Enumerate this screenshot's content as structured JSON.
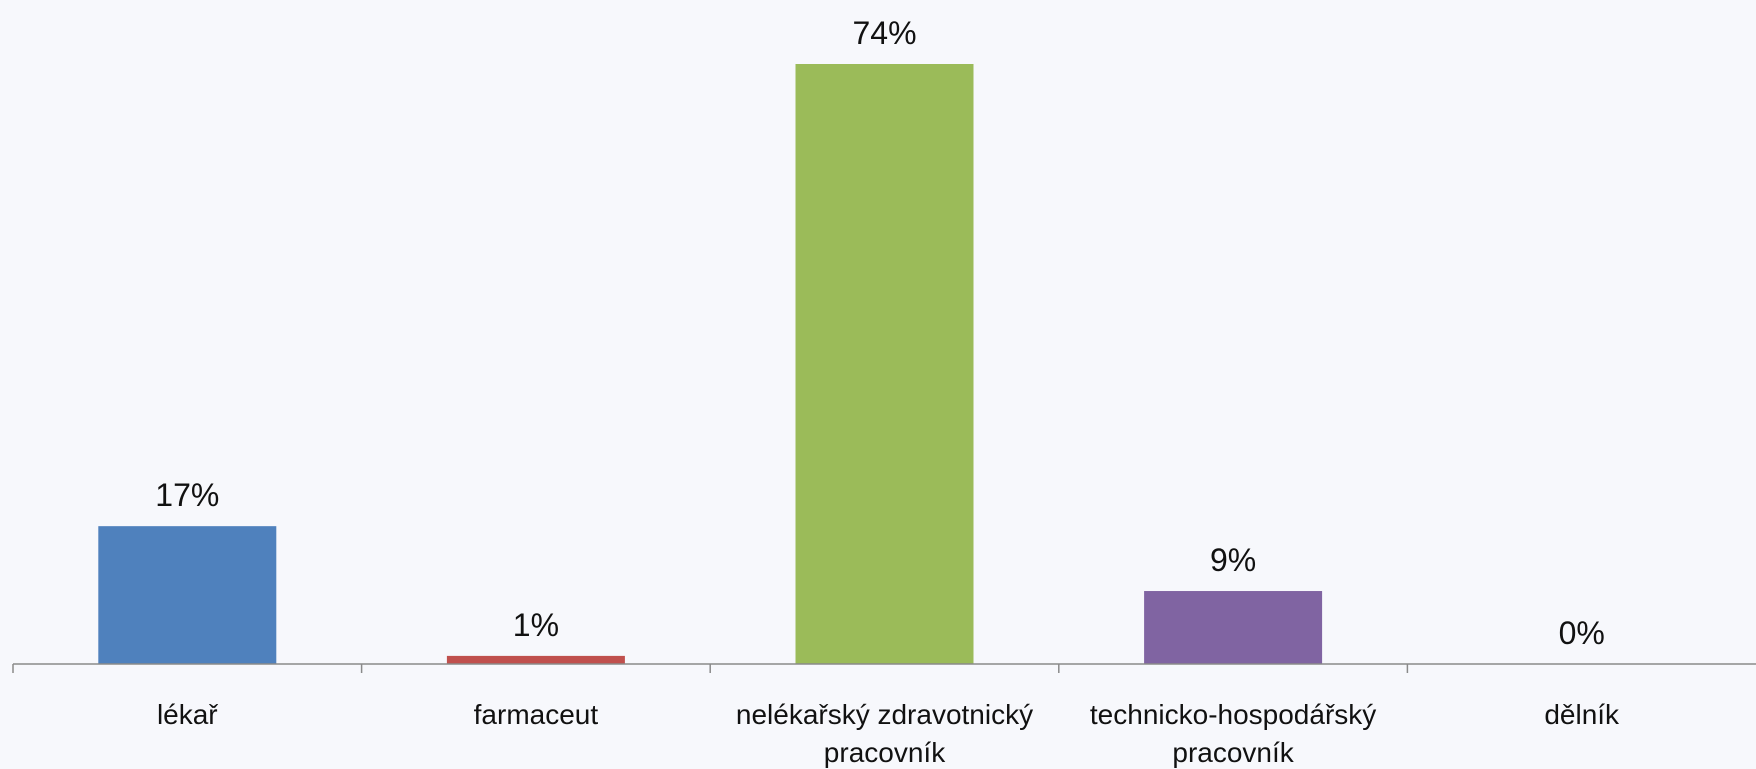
{
  "chart_data": {
    "type": "bar",
    "categories": [
      [
        "lékař"
      ],
      [
        "farmaceut"
      ],
      [
        "nelékařský zdravotnický",
        "pracovník"
      ],
      [
        "technicko-hospodářský",
        "pracovník"
      ],
      [
        "dělník"
      ]
    ],
    "values": [
      17,
      1,
      74,
      9,
      0
    ],
    "value_labels": [
      "17%",
      "1%",
      "74%",
      "9%",
      "0%"
    ],
    "colors": [
      "#4f81bd",
      "#c0504d",
      "#9bbb59",
      "#8064a2",
      "#4bacc6"
    ],
    "ylim": [
      0,
      74
    ],
    "grid": false,
    "legend": "none"
  }
}
